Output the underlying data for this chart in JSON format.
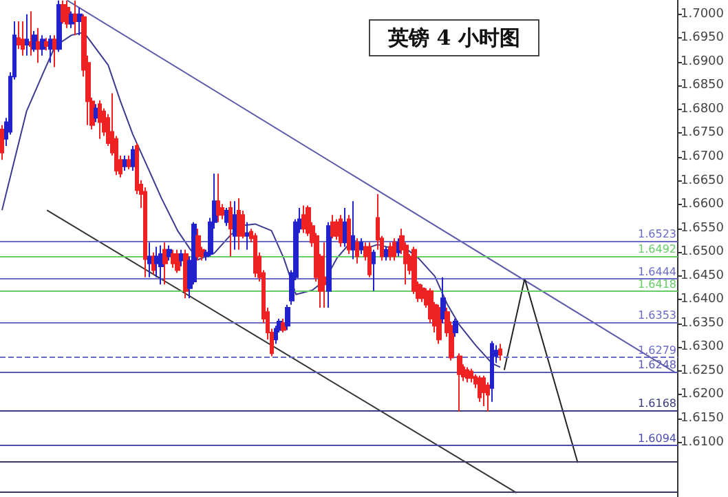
{
  "chart_data": {
    "type": "candlestick",
    "title": "英镑 4 小时图",
    "categories": [
      null,
      null,
      null,
      null,
      null,
      null,
      null,
      null,
      null,
      null,
      null,
      null,
      null,
      null,
      null,
      null,
      null,
      null,
      null,
      null,
      null,
      null,
      null,
      null,
      null,
      null,
      null,
      null,
      null,
      null,
      null,
      null,
      null,
      null,
      null,
      null,
      null,
      null,
      null,
      null,
      null,
      null,
      null,
      null,
      null,
      null,
      null,
      null,
      null,
      null,
      null,
      null,
      null,
      null,
      null,
      null,
      null,
      null,
      null,
      null,
      null,
      null,
      null,
      null,
      null,
      null,
      null,
      null,
      null,
      null,
      null,
      null,
      null,
      null,
      null,
      null,
      null,
      null,
      null,
      null,
      null,
      null,
      null,
      null,
      null,
      null,
      null,
      null,
      null,
      null,
      null,
      null,
      null,
      null,
      null,
      null,
      null,
      null,
      null,
      null,
      null,
      null,
      null,
      null,
      null,
      null,
      null,
      null,
      null,
      null,
      null,
      null,
      null,
      null,
      null,
      null,
      null,
      null,
      null,
      null,
      null,
      null,
      null,
      null,
      null,
      null,
      null,
      null,
      null,
      null,
      null,
      null,
      null,
      null,
      null,
      null,
      null,
      null,
      null,
      null,
      null,
      null,
      null,
      null,
      null,
      null,
      null,
      null,
      null,
      null,
      null,
      null,
      null,
      null,
      null,
      null,
      null,
      null,
      null,
      null,
      null,
      null,
      null,
      null,
      null,
      null
    ],
    "series": [
      {
        "ohlc": [
          [
            1.6758,
            1.6767,
            1.6694,
            1.6709
          ],
          [
            1.6738,
            1.6782,
            1.6723,
            1.6773
          ],
          [
            1.6753,
            1.6878,
            1.6747,
            1.6869
          ],
          [
            1.6869,
            1.6985,
            1.6863,
            1.6956
          ],
          [
            1.695,
            1.6985,
            1.6927,
            1.6936
          ],
          [
            1.6947,
            1.6985,
            1.6913,
            1.6927
          ],
          [
            1.6936,
            1.7,
            1.6913,
            1.6947
          ],
          [
            1.6942,
            1.7006,
            1.6913,
            1.6933
          ],
          [
            1.6927,
            1.6965,
            1.6921,
            1.6956
          ],
          [
            1.6942,
            1.6971,
            1.6898,
            1.6927
          ],
          [
            1.6927,
            1.6956,
            1.6913,
            1.6947
          ],
          [
            1.6942,
            1.695,
            1.6924,
            1.6933
          ],
          [
            1.6927,
            1.6956,
            1.6898,
            1.6947
          ],
          [
            1.6947,
            1.6956,
            1.6889,
            1.6927
          ],
          [
            1.6927,
            1.7029,
            1.6921,
            1.702
          ],
          [
            1.702,
            1.7029,
            1.698,
            1.6985
          ],
          [
            1.7014,
            1.7029,
            1.6971,
            1.698
          ],
          [
            1.698,
            1.7006,
            1.6971,
            1.7
          ],
          [
            1.7,
            1.7029,
            1.6956,
            1.6985
          ],
          [
            1.6985,
            1.7014,
            1.6956,
            1.7
          ],
          [
            1.6994,
            1.7,
            1.6869,
            1.6883
          ],
          [
            1.6898,
            1.6913,
            1.6767,
            1.6817
          ],
          [
            1.6817,
            1.6825,
            1.6758,
            1.6767
          ],
          [
            1.6782,
            1.6811,
            1.6773,
            1.6802
          ],
          [
            1.6811,
            1.6819,
            1.6738,
            1.6773
          ],
          [
            1.6796,
            1.6802,
            1.6744,
            1.6753
          ],
          [
            1.6782,
            1.679,
            1.6723,
            1.6729
          ],
          [
            1.6753,
            1.6834,
            1.6703,
            1.6709
          ],
          [
            1.6738,
            1.6744,
            1.6662,
            1.6671
          ],
          [
            1.6694,
            1.6703,
            1.6657,
            1.6665
          ],
          [
            1.668,
            1.6703,
            1.6671,
            1.6694
          ],
          [
            1.6694,
            1.6703,
            1.6674,
            1.668
          ],
          [
            1.668,
            1.6723,
            1.6671,
            1.6715
          ],
          [
            1.6723,
            1.6729,
            1.6622,
            1.663
          ],
          [
            1.6642,
            1.6651,
            1.6593,
            1.6622
          ],
          [
            1.6627,
            1.6636,
            1.6447,
            1.6485
          ],
          [
            1.6476,
            1.652,
            1.6447,
            1.6491
          ],
          [
            1.6491,
            1.6499,
            1.6453,
            1.6462
          ],
          [
            1.6476,
            1.6511,
            1.6447,
            1.6491
          ],
          [
            1.647,
            1.6514,
            1.6432,
            1.6496
          ],
          [
            1.6505,
            1.652,
            1.6432,
            1.6476
          ],
          [
            1.6491,
            1.6514,
            1.6482,
            1.6505
          ],
          [
            1.6496,
            1.6505,
            1.6467,
            1.6476
          ],
          [
            1.6496,
            1.6505,
            1.6456,
            1.6462
          ],
          [
            1.6482,
            1.6505,
            1.647,
            1.6496
          ],
          [
            1.6496,
            1.6505,
            1.6403,
            1.6418
          ],
          [
            1.6424,
            1.6491,
            1.6403,
            1.6482
          ],
          [
            1.6438,
            1.6563,
            1.6432,
            1.6558
          ],
          [
            1.6534,
            1.6549,
            1.6482,
            1.6491
          ],
          [
            1.6505,
            1.6511,
            1.6482,
            1.6491
          ],
          [
            1.6491,
            1.6505,
            1.6482,
            1.6499
          ],
          [
            1.6496,
            1.6572,
            1.6491,
            1.6563
          ],
          [
            1.6563,
            1.6665,
            1.6549,
            1.6607
          ],
          [
            1.6607,
            1.6665,
            1.6563,
            1.6578
          ],
          [
            1.6593,
            1.6601,
            1.6569,
            1.6578
          ],
          [
            1.6563,
            1.6593,
            1.6555,
            1.6587
          ],
          [
            1.6593,
            1.6607,
            1.6491,
            1.6549
          ],
          [
            1.6534,
            1.6607,
            1.6505,
            1.6578
          ],
          [
            1.6587,
            1.6613,
            1.6505,
            1.6534
          ],
          [
            1.6578,
            1.6587,
            1.6529,
            1.6534
          ],
          [
            1.6534,
            1.6563,
            1.6505,
            1.654
          ],
          [
            1.6543,
            1.6549,
            1.652,
            1.6529
          ],
          [
            1.6534,
            1.654,
            1.6447,
            1.6456
          ],
          [
            1.6491,
            1.6499,
            1.6438,
            1.6447
          ],
          [
            1.6456,
            1.6462,
            1.6351,
            1.636
          ],
          [
            1.6374,
            1.6383,
            1.6316,
            1.6331
          ],
          [
            1.6331,
            1.6339,
            1.6281,
            1.6287
          ],
          [
            1.6316,
            1.6345,
            1.6307,
            1.6339
          ],
          [
            1.6336,
            1.636,
            1.6331,
            1.6354
          ],
          [
            1.6351,
            1.636,
            1.6331,
            1.6336
          ],
          [
            1.6345,
            1.6389,
            1.6336,
            1.6383
          ],
          [
            1.6398,
            1.6462,
            1.6389,
            1.6456
          ],
          [
            1.6447,
            1.6569,
            1.6441,
            1.6563
          ],
          [
            1.6549,
            1.6593,
            1.654,
            1.6569
          ],
          [
            1.6578,
            1.6598,
            1.654,
            1.6549
          ],
          [
            1.6593,
            1.6598,
            1.6534,
            1.654
          ],
          [
            1.6555,
            1.6563,
            1.6511,
            1.652
          ],
          [
            1.6534,
            1.654,
            1.6438,
            1.6447
          ],
          [
            1.6491,
            1.6496,
            1.6383,
            1.6418
          ],
          [
            1.6447,
            1.652,
            1.6383,
            1.6432
          ],
          [
            1.6418,
            1.6563,
            1.6383,
            1.6555
          ],
          [
            1.6563,
            1.6578,
            1.6529,
            1.6534
          ],
          [
            1.6563,
            1.6569,
            1.6526,
            1.6534
          ],
          [
            1.6569,
            1.6578,
            1.6511,
            1.652
          ],
          [
            1.652,
            1.6593,
            1.6511,
            1.6563
          ],
          [
            1.6569,
            1.6578,
            1.6496,
            1.6505
          ],
          [
            1.6505,
            1.6607,
            1.6485,
            1.6534
          ],
          [
            1.652,
            1.6529,
            1.6476,
            1.6491
          ],
          [
            1.6505,
            1.6529,
            1.6496,
            1.652
          ],
          [
            1.6511,
            1.652,
            1.6482,
            1.6491
          ],
          [
            1.6511,
            1.652,
            1.6447,
            1.6453
          ],
          [
            1.6476,
            1.6505,
            1.6418,
            1.6499
          ],
          [
            1.6572,
            1.6622,
            1.6505,
            1.6526
          ],
          [
            1.6529,
            1.6534,
            1.6482,
            1.6491
          ],
          [
            1.6491,
            1.6511,
            1.6482,
            1.6505
          ],
          [
            1.6511,
            1.652,
            1.6482,
            1.6491
          ],
          [
            1.652,
            1.6529,
            1.6482,
            1.6491
          ],
          [
            1.6499,
            1.6529,
            1.6491,
            1.652
          ],
          [
            1.6534,
            1.6549,
            1.6496,
            1.6505
          ],
          [
            1.6514,
            1.652,
            1.6432,
            1.6476
          ],
          [
            1.6491,
            1.6496,
            1.6453,
            1.6462
          ],
          [
            1.6505,
            1.6511,
            1.6412,
            1.6418
          ],
          [
            1.6432,
            1.6438,
            1.6395,
            1.6403
          ],
          [
            1.6424,
            1.6432,
            1.6395,
            1.6403
          ],
          [
            1.6418,
            1.6424,
            1.6383,
            1.6389
          ],
          [
            1.6418,
            1.6424,
            1.6351,
            1.636
          ],
          [
            1.6389,
            1.6395,
            1.6331,
            1.6345
          ],
          [
            1.6383,
            1.6389,
            1.6307,
            1.6316
          ],
          [
            1.636,
            1.6447,
            1.6351,
            1.6403
          ],
          [
            1.6374,
            1.6383,
            1.6322,
            1.6331
          ],
          [
            1.6345,
            1.6354,
            1.6272,
            1.6278
          ],
          [
            1.6331,
            1.636,
            1.6322,
            1.6354
          ],
          [
            1.6281,
            1.6287,
            1.6165,
            1.6243
          ],
          [
            1.6258,
            1.6264,
            1.6229,
            1.6238
          ],
          [
            1.6252,
            1.6258,
            1.6226,
            1.6235
          ],
          [
            1.6249,
            1.6255,
            1.6226,
            1.6235
          ],
          [
            1.6238,
            1.6243,
            1.6214,
            1.6223
          ],
          [
            1.6235,
            1.624,
            1.6185,
            1.6194
          ],
          [
            1.6235,
            1.624,
            1.6176,
            1.6205
          ],
          [
            1.622,
            1.6226,
            1.6165,
            1.62
          ],
          [
            1.6214,
            1.6313,
            1.6185,
            1.6307
          ],
          [
            1.6281,
            1.6304,
            1.6267,
            1.6293
          ],
          [
            1.6296,
            1.6307,
            1.6272,
            1.6284
          ],
          null,
          null,
          null,
          null,
          null,
          null,
          null,
          null,
          null,
          null,
          null,
          null,
          null,
          null,
          null,
          null,
          null,
          null,
          null,
          null,
          null,
          null,
          null,
          null,
          null,
          null,
          null,
          null,
          null,
          null,
          null,
          null,
          null,
          null,
          null,
          null,
          null,
          null,
          null,
          null,
          null,
          null,
          null
        ],
        "colors": [
          "#ee2222",
          "#2222cc",
          "#2222cc",
          "#2222cc",
          "#ee2222",
          "#ee2222",
          "#2222cc",
          "#ee2222",
          "#2222cc",
          "#ee2222",
          "#2222cc",
          "#ee2222",
          "#2222cc",
          "#ee2222",
          "#2222cc",
          "#ee2222",
          "#ee2222",
          "#2222cc",
          "#ee2222",
          "#2222cc",
          "#ee2222",
          "#ee2222",
          "#ee2222",
          "#2222cc",
          "#ee2222",
          "#ee2222",
          "#ee2222",
          "#ee2222",
          "#ee2222",
          "#ee2222",
          "#2222cc",
          "#ee2222",
          "#2222cc",
          "#ee2222",
          "#ee2222",
          "#ee2222",
          "#2222cc",
          "#ee2222",
          "#2222cc",
          "#2222cc",
          "#ee2222",
          "#2222cc",
          "#ee2222",
          "#ee2222",
          "#2222cc",
          "#ee2222",
          "#2222cc",
          "#2222cc",
          "#ee2222",
          "#ee2222",
          "#2222cc",
          "#2222cc",
          "#2222cc",
          "#ee2222",
          "#ee2222",
          "#2222cc",
          "#ee2222",
          "#2222cc",
          "#ee2222",
          "#ee2222",
          "#2222cc",
          "#ee2222",
          "#ee2222",
          "#ee2222",
          "#ee2222",
          "#ee2222",
          "#ee2222",
          "#2222cc",
          "#2222cc",
          "#ee2222",
          "#2222cc",
          "#2222cc",
          "#2222cc",
          "#2222cc",
          "#ee2222",
          "#ee2222",
          "#ee2222",
          "#ee2222",
          "#ee2222",
          "#ee2222",
          "#2222cc",
          "#ee2222",
          "#ee2222",
          "#ee2222",
          "#2222cc",
          "#ee2222",
          "#2222cc",
          "#ee2222",
          "#2222cc",
          "#ee2222",
          "#ee2222",
          "#2222cc",
          "#ee2222",
          "#ee2222",
          "#2222cc",
          "#ee2222",
          "#ee2222",
          "#2222cc",
          "#ee2222",
          "#ee2222",
          "#ee2222",
          "#ee2222",
          "#ee2222",
          "#ee2222",
          "#ee2222",
          "#ee2222",
          "#ee2222",
          "#ee2222",
          "#2222cc",
          "#ee2222",
          "#ee2222",
          "#2222cc",
          "#ee2222",
          "#ee2222",
          "#ee2222",
          "#ee2222",
          "#ee2222",
          "#ee2222",
          "#ee2222",
          "#ee2222",
          "#2222cc",
          "#2222cc",
          "#ee2222",
          null,
          null,
          null,
          null,
          null,
          null,
          null,
          null,
          null,
          null,
          null,
          null,
          null,
          null,
          null,
          null,
          null,
          null,
          null,
          null,
          null,
          null,
          null,
          null,
          null,
          null,
          null,
          null,
          null,
          null,
          null,
          null,
          null,
          null,
          null,
          null,
          null,
          null,
          null,
          null,
          null,
          null,
          null
        ]
      },
      {
        "type": "line",
        "color": "#3a3a90",
        "values": [
          1.6588,
          null,
          null,
          null,
          null,
          null,
          1.6796,
          null,
          null,
          null,
          1.6875,
          null,
          null,
          1.6933,
          null,
          null,
          null,
          1.6956,
          null,
          null,
          1.6962,
          1.6951,
          null,
          null,
          null,
          null,
          1.6893,
          null,
          null,
          1.6817,
          null,
          null,
          1.6748,
          null,
          null,
          null,
          1.6672,
          null,
          null,
          1.6614,
          null,
          null,
          null,
          1.6545,
          null,
          null,
          1.6507,
          null,
          1.6484,
          null,
          null,
          null,
          1.6498,
          null,
          null,
          null,
          1.6536,
          null,
          null,
          1.6556,
          null,
          null,
          1.6559,
          null,
          null,
          null,
          1.6545,
          null,
          null,
          1.6487,
          null,
          null,
          1.6411,
          null,
          null,
          null,
          1.642,
          null,
          null,
          1.644,
          null,
          null,
          1.6487,
          null,
          null,
          null,
          1.6527,
          null,
          null,
          1.6507,
          null,
          null,
          1.6516,
          null,
          null,
          null,
          1.6507,
          null,
          null,
          1.6507,
          null,
          null,
          1.6487,
          null,
          null,
          null,
          1.6449,
          null,
          null,
          1.6391,
          null,
          null,
          1.6347,
          null,
          null,
          null,
          1.6304,
          null,
          null,
          null,
          1.6266,
          null,
          1.6258,
          null,
          null,
          null,
          null,
          null,
          null,
          null,
          null,
          null,
          null,
          null,
          null,
          null,
          null,
          null,
          null,
          null,
          null,
          null,
          null,
          null,
          null,
          null,
          null,
          null,
          null,
          null,
          null,
          null,
          null,
          null,
          null,
          null,
          null,
          null,
          null,
          null,
          null,
          null,
          null,
          null,
          null,
          null
        ]
      },
      {
        "type": "line",
        "color": "#5a5aa8",
        "values": [
          null,
          null,
          null,
          null,
          null,
          null,
          null,
          null,
          null,
          null,
          null,
          null,
          null,
          null,
          null,
          null,
          1.7029,
          null,
          null,
          null,
          null,
          null,
          null,
          null,
          null,
          null,
          null,
          null,
          null,
          null,
          null,
          null,
          null,
          null,
          null,
          null,
          null,
          null,
          null,
          null,
          null,
          null,
          null,
          null,
          null,
          null,
          null,
          null,
          null,
          null,
          null,
          null,
          null,
          null,
          null,
          null,
          null,
          null,
          null,
          null,
          null,
          null,
          null,
          null,
          null,
          null,
          null,
          null,
          null,
          null,
          null,
          null,
          null,
          null,
          null,
          null,
          null,
          null,
          null,
          null,
          null,
          null,
          null,
          null,
          null,
          null,
          null,
          null,
          null,
          null,
          null,
          null,
          null,
          null,
          null,
          null,
          null,
          null,
          null,
          null,
          null,
          null,
          null,
          null,
          null,
          null,
          null,
          null,
          null,
          null,
          null,
          null,
          null,
          null,
          null,
          null,
          null,
          null,
          null,
          null,
          null,
          null,
          null,
          null,
          null,
          null,
          null,
          null,
          null,
          null,
          null,
          null,
          null,
          null,
          null,
          null,
          null,
          null,
          null,
          null,
          null,
          null,
          null,
          null,
          null,
          null,
          null,
          null,
          null,
          null,
          null,
          null,
          null,
          null,
          null,
          null,
          null,
          null,
          null,
          null,
          null,
          null,
          null,
          null,
          null,
          1.6246
        ]
      },
      {
        "type": "line",
        "color": "#333333",
        "values": [
          null,
          null,
          null,
          null,
          null,
          null,
          null,
          null,
          null,
          null,
          null,
          1.6588,
          null,
          null,
          null,
          null,
          null,
          null,
          null,
          null,
          null,
          null,
          null,
          null,
          null,
          null,
          null,
          null,
          null,
          null,
          null,
          null,
          null,
          null,
          null,
          null,
          null,
          null,
          null,
          null,
          null,
          null,
          null,
          null,
          null,
          null,
          null,
          null,
          null,
          null,
          null,
          null,
          null,
          null,
          null,
          null,
          null,
          null,
          null,
          null,
          null,
          null,
          null,
          null,
          null,
          null,
          null,
          null,
          null,
          null,
          null,
          null,
          null,
          null,
          null,
          null,
          null,
          null,
          null,
          null,
          null,
          null,
          null,
          null,
          null,
          null,
          null,
          null,
          null,
          null,
          null,
          null,
          null,
          null,
          null,
          null,
          null,
          null,
          null,
          null,
          null,
          null,
          null,
          null,
          null,
          null,
          null,
          null,
          null,
          null,
          null,
          null,
          null,
          null,
          null,
          null,
          null,
          null,
          null,
          null,
          null,
          null,
          null,
          null,
          null,
          null,
          1.5994,
          null,
          null,
          null,
          null,
          null,
          null,
          null,
          null,
          null,
          null,
          null,
          null,
          null,
          null,
          null,
          null,
          null,
          null,
          null,
          null,
          null,
          null,
          null,
          null,
          null,
          null,
          null,
          null,
          null,
          null,
          null,
          null,
          null,
          null,
          null,
          null,
          null,
          null,
          null
        ]
      },
      {
        "type": "line",
        "color": "#222222",
        "values": [
          null,
          null,
          null,
          null,
          null,
          null,
          null,
          null,
          null,
          null,
          null,
          null,
          null,
          null,
          null,
          null,
          null,
          null,
          null,
          null,
          null,
          null,
          null,
          null,
          null,
          null,
          null,
          null,
          null,
          null,
          null,
          null,
          null,
          null,
          null,
          null,
          null,
          null,
          null,
          null,
          null,
          null,
          null,
          null,
          null,
          null,
          null,
          null,
          null,
          null,
          null,
          null,
          null,
          null,
          null,
          null,
          null,
          null,
          null,
          null,
          null,
          null,
          null,
          null,
          null,
          null,
          null,
          null,
          null,
          null,
          null,
          null,
          null,
          null,
          null,
          null,
          null,
          null,
          null,
          null,
          null,
          null,
          null,
          null,
          null,
          null,
          null,
          null,
          null,
          null,
          null,
          null,
          null,
          null,
          null,
          null,
          null,
          null,
          null,
          null,
          null,
          null,
          null,
          null,
          null,
          null,
          null,
          null,
          null,
          null,
          null,
          null,
          null,
          null,
          null,
          null,
          null,
          null,
          null,
          null,
          null,
          null,
          null,
          1.6252,
          null,
          null,
          null,
          null,
          1.6444,
          null,
          null,
          null,
          null,
          null,
          null,
          null,
          null,
          null,
          null,
          null,
          null,
          1.6057,
          null,
          null,
          null,
          null,
          null,
          null,
          null,
          null,
          null,
          null,
          null,
          null,
          null,
          null,
          null,
          null,
          null,
          null,
          null,
          null,
          null,
          null,
          null,
          null
        ]
      }
    ],
    "ylim": [
      1.5985,
      1.703
    ],
    "yticks": [
      {
        "value": 1.61,
        "label": "1.6100"
      },
      {
        "value": 1.615,
        "label": "1.6150"
      },
      {
        "value": 1.62,
        "label": "1.6200"
      },
      {
        "value": 1.625,
        "label": "1.6250"
      },
      {
        "value": 1.63,
        "label": "1.6300"
      },
      {
        "value": 1.635,
        "label": "1.6350"
      },
      {
        "value": 1.64,
        "label": "1.6400"
      },
      {
        "value": 1.645,
        "label": "1.6450"
      },
      {
        "value": 1.65,
        "label": "1.6500"
      },
      {
        "value": 1.655,
        "label": "1.6550"
      },
      {
        "value": 1.66,
        "label": "1.6600"
      },
      {
        "value": 1.665,
        "label": "1.6650"
      },
      {
        "value": 1.67,
        "label": "1.6700"
      },
      {
        "value": 1.675,
        "label": "1.6750"
      },
      {
        "value": 1.68,
        "label": "1.6800"
      },
      {
        "value": 1.685,
        "label": "1.6850"
      },
      {
        "value": 1.69,
        "label": "1.6900"
      },
      {
        "value": 1.695,
        "label": "1.6950"
      },
      {
        "value": 1.7,
        "label": "1.7000"
      }
    ],
    "ref_lines": [
      {
        "axis": "y",
        "value": 1.6523,
        "label": "1.6523",
        "color": "#6a6ac8",
        "line_style": "solid"
      },
      {
        "axis": "y",
        "value": 1.6492,
        "label": "1.6492",
        "color": "#66cc66",
        "line_style": "solid"
      },
      {
        "axis": "y",
        "value": 1.6444,
        "label": "1.6444",
        "color": "#6a6ac8",
        "line_style": "solid"
      },
      {
        "axis": "y",
        "value": 1.6418,
        "label": "1.6418",
        "color": "#66cc66",
        "line_style": "solid"
      },
      {
        "axis": "y",
        "value": 1.6353,
        "label": "1.6353",
        "color": "#6a6ac8",
        "line_style": "solid"
      },
      {
        "axis": "y",
        "value": 1.6279,
        "label": "1.6279",
        "color": "#6a6ac8",
        "line_style": "dashed"
      },
      {
        "axis": "y",
        "value": 1.6248,
        "label": "1.6248",
        "color": "#5a5ab8",
        "line_style": "solid"
      },
      {
        "axis": "y",
        "value": 1.6168,
        "label": "1.6168",
        "color": "#3a3a80",
        "line_style": "solid"
      },
      {
        "axis": "y",
        "value": 1.6094,
        "label": "1.6094",
        "color": "#4a4ab0",
        "line_style": "solid"
      },
      {
        "axis": "y",
        "value": 1.606,
        "color": "#3a3a60",
        "line_style": "solid"
      },
      {
        "axis": "y",
        "value": 1.5996,
        "color": "#3a3a60",
        "line_style": "solid"
      }
    ],
    "grid": false,
    "tick_labels": "y"
  }
}
